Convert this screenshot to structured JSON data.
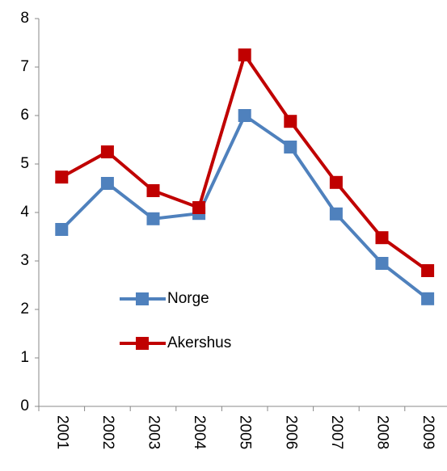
{
  "chart_data": {
    "type": "line",
    "categories": [
      "2001",
      "2002",
      "2003",
      "2004",
      "2005",
      "2006",
      "2007",
      "2008",
      "2009"
    ],
    "series": [
      {
        "name": "Norge",
        "color": "#4f81bd",
        "values": [
          3.65,
          4.6,
          3.87,
          3.98,
          6.0,
          5.35,
          3.97,
          2.95,
          2.22
        ]
      },
      {
        "name": "Akershus",
        "color": "#c00000",
        "values": [
          4.73,
          5.25,
          4.45,
          4.1,
          7.25,
          5.88,
          4.62,
          3.48,
          2.8
        ]
      }
    ],
    "ylim": [
      0,
      8
    ],
    "yticks": [
      0,
      1,
      2,
      3,
      4,
      5,
      6,
      7,
      8
    ],
    "grid": false
  }
}
